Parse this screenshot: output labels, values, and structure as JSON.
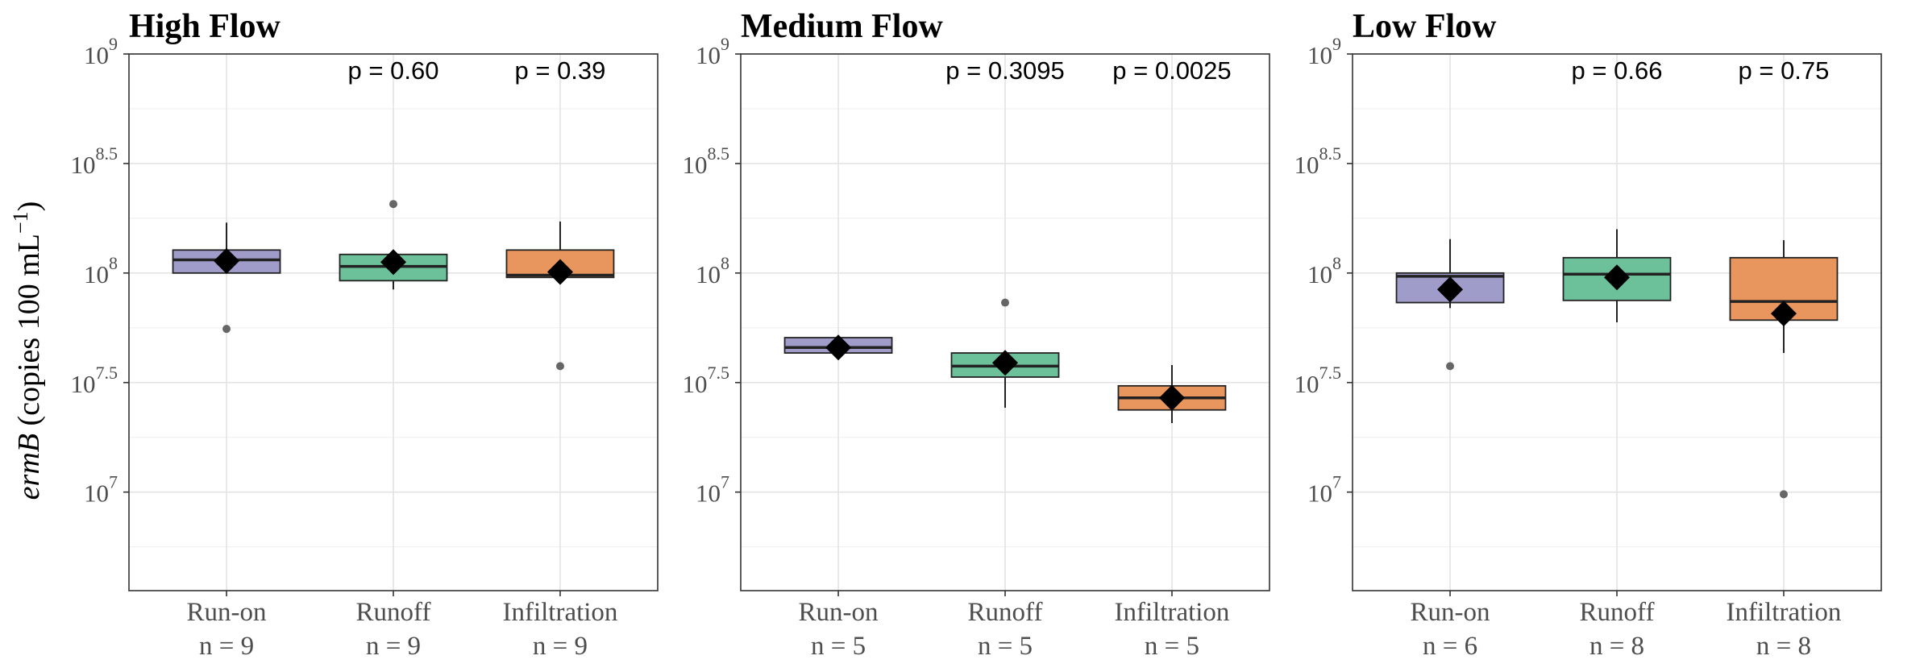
{
  "y_axis": {
    "label_italic": "ermB",
    "label_rest": " (copies 100 mL",
    "label_exp": "−1",
    "label_close": ")",
    "ticks": [
      {
        "value": 7,
        "base": "10",
        "exp": "7"
      },
      {
        "value": 7.5,
        "base": "10",
        "exp": "7.5"
      },
      {
        "value": 8,
        "base": "10",
        "exp": "8"
      },
      {
        "value": 8.5,
        "base": "10",
        "exp": "8.5"
      },
      {
        "value": 9,
        "base": "10",
        "exp": "9"
      }
    ],
    "range": [
      6.55,
      9.0
    ]
  },
  "colors": {
    "Run-on": "#9f9cc9",
    "Runoff": "#6cc09a",
    "Infiltration": "#e9965e",
    "mean_marker": "#000000",
    "outlier": "#666666"
  },
  "chart_data": [
    {
      "type": "box",
      "title": "High Flow",
      "categories": [
        "Run-on",
        "Runoff",
        "Infiltration"
      ],
      "n_labels": [
        "n = 9",
        "n = 9",
        "n = 9"
      ],
      "p_values": [
        "",
        "p = 0.60",
        "p = 0.39"
      ],
      "boxes": [
        {
          "q1": 8.0,
          "median": 8.06,
          "q3": 8.105,
          "whisker_low": 8.0,
          "whisker_high": 8.23,
          "mean": 8.055,
          "outliers": [
            7.745
          ]
        },
        {
          "q1": 7.965,
          "median": 8.03,
          "q3": 8.085,
          "whisker_low": 7.925,
          "whisker_high": 8.085,
          "mean": 8.05,
          "outliers": [
            8.315
          ]
        },
        {
          "q1": 7.98,
          "median": 7.99,
          "q3": 8.105,
          "whisker_low": 7.98,
          "whisker_high": 8.235,
          "mean": 8.005,
          "outliers": [
            7.575
          ]
        }
      ]
    },
    {
      "type": "box",
      "title": "Medium Flow",
      "categories": [
        "Run-on",
        "Runoff",
        "Infiltration"
      ],
      "n_labels": [
        "n = 5",
        "n = 5",
        "n = 5"
      ],
      "p_values": [
        "",
        "p = 0.3095",
        "p = 0.0025"
      ],
      "boxes": [
        {
          "q1": 7.635,
          "median": 7.66,
          "q3": 7.705,
          "whisker_low": 7.635,
          "whisker_high": 7.705,
          "mean": 7.66,
          "outliers": []
        },
        {
          "q1": 7.525,
          "median": 7.575,
          "q3": 7.635,
          "whisker_low": 7.385,
          "whisker_high": 7.635,
          "mean": 7.59,
          "outliers": [
            7.865
          ]
        },
        {
          "q1": 7.375,
          "median": 7.43,
          "q3": 7.485,
          "whisker_low": 7.315,
          "whisker_high": 7.58,
          "mean": 7.43,
          "outliers": []
        }
      ]
    },
    {
      "type": "box",
      "title": "Low Flow",
      "categories": [
        "Run-on",
        "Runoff",
        "Infiltration"
      ],
      "n_labels": [
        "n = 6",
        "n = 8",
        "n = 8"
      ],
      "p_values": [
        "",
        "p = 0.66",
        "p = 0.75"
      ],
      "boxes": [
        {
          "q1": 7.865,
          "median": 7.985,
          "q3": 8.0,
          "whisker_low": 7.84,
          "whisker_high": 8.155,
          "mean": 7.925,
          "outliers": [
            7.575
          ]
        },
        {
          "q1": 7.875,
          "median": 7.995,
          "q3": 8.07,
          "whisker_low": 7.775,
          "whisker_high": 8.2,
          "mean": 7.98,
          "outliers": []
        },
        {
          "q1": 7.785,
          "median": 7.87,
          "q3": 8.07,
          "whisker_low": 7.635,
          "whisker_high": 8.15,
          "mean": 7.815,
          "outliers": [
            6.99
          ]
        }
      ]
    }
  ]
}
